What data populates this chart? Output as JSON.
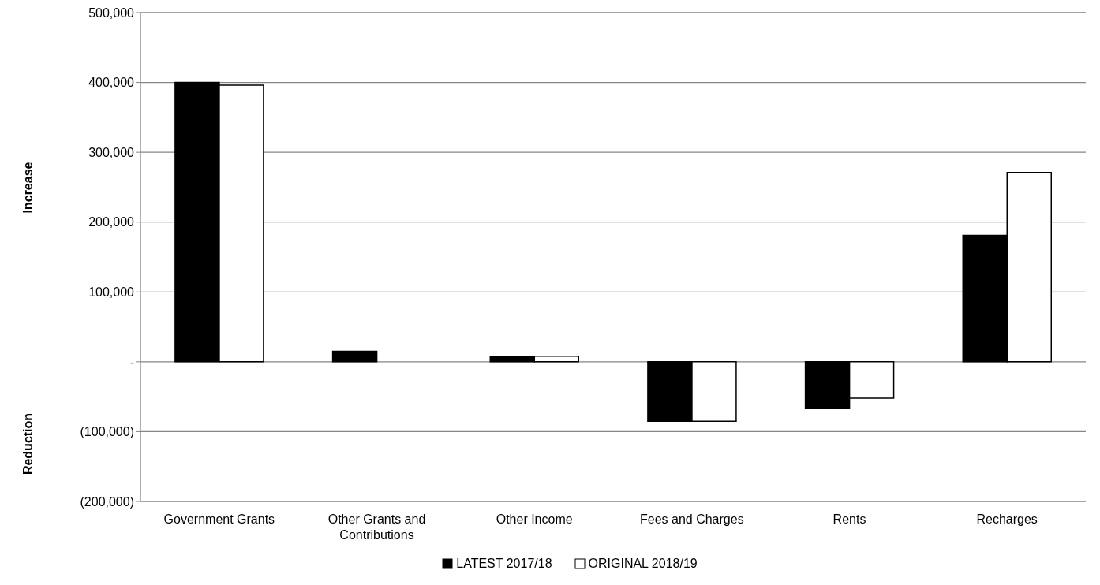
{
  "chart_data": {
    "type": "bar",
    "categories": [
      "Government Grants",
      "Other Grants and Contributions",
      "Other Income",
      "Fees and Charges",
      "Rents",
      "Recharges"
    ],
    "series": [
      {
        "name": "LATEST 2017/18",
        "color": "#000000",
        "values": [
          400000,
          15000,
          8000,
          -85000,
          -67000,
          181000
        ]
      },
      {
        "name": "ORIGINAL 2018/19",
        "color": "#ffffff",
        "values": [
          396000,
          0,
          8000,
          -85000,
          -52000,
          271000
        ]
      }
    ],
    "ylabel": "Increase",
    "annotations": [
      "Reduction"
    ],
    "ylim": [
      -200000,
      500000
    ],
    "yticks": [
      {
        "value": -200000,
        "label": "(200,000)"
      },
      {
        "value": -100000,
        "label": "(100,000)"
      },
      {
        "value": 0,
        "label": "-"
      },
      {
        "value": 100000,
        "label": "100,000"
      },
      {
        "value": 200000,
        "label": "200,000"
      },
      {
        "value": 300000,
        "label": "300,000"
      },
      {
        "value": 400000,
        "label": "400,000"
      },
      {
        "value": 500000,
        "label": "500,000"
      }
    ],
    "grid": "y",
    "legend": "bottom"
  }
}
